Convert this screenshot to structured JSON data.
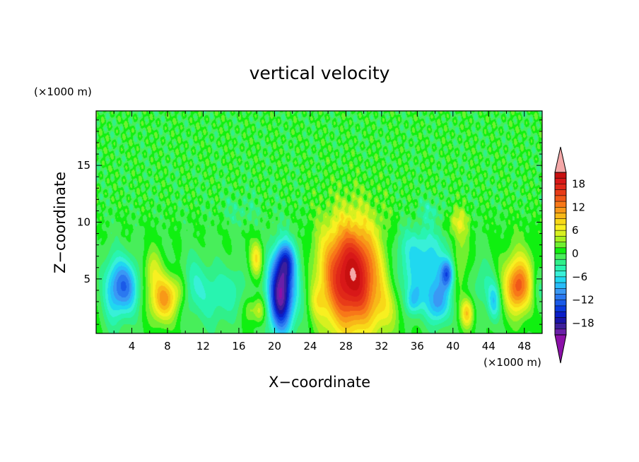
{
  "chart_data": {
    "type": "heatmap",
    "title": "vertical velocity",
    "xlabel": "X−coordinate",
    "ylabel": "Z−coordinate",
    "x_unit": "(×1000 m)",
    "y_unit": "(×1000 m)",
    "xlim": [
      0,
      50
    ],
    "ylim": [
      0.2,
      19.8
    ],
    "x_ticks": [
      4,
      8,
      12,
      16,
      20,
      24,
      28,
      32,
      36,
      40,
      44,
      48
    ],
    "y_ticks": [
      5,
      10,
      15
    ],
    "x_tick_labels": [
      "4",
      "8",
      "12",
      "16",
      "20",
      "24",
      "28",
      "32",
      "36",
      "40",
      "44",
      "48"
    ],
    "y_tick_labels": [
      "5",
      "10",
      "15"
    ],
    "colorbar": {
      "levels": [
        -21,
        -19.5,
        -18,
        -16.5,
        -15,
        -13.5,
        -12,
        -10.5,
        -9,
        -7.5,
        -6,
        -4.5,
        -3,
        -1.5,
        0,
        1.5,
        3,
        4.5,
        6,
        7.5,
        9,
        10.5,
        12,
        13.5,
        15,
        16.5,
        18,
        19.5,
        21
      ],
      "tick_values": [
        -18,
        -12,
        -6,
        0,
        6,
        12,
        18
      ],
      "tick_labels": [
        "−18",
        "−12",
        "−6",
        "0",
        "6",
        "12",
        "18"
      ],
      "colors": [
        "#6a1fa8",
        "#3d1f9c",
        "#1a14a8",
        "#0a1ec8",
        "#0a3ade",
        "#1a5ae8",
        "#2a78f0",
        "#3a98f4",
        "#28bcf8",
        "#20d8f0",
        "#38f0d8",
        "#28f4b0",
        "#30f08a",
        "#48ee5a",
        "#10f010",
        "#70f030",
        "#a8f020",
        "#d8f020",
        "#f8f020",
        "#f8d818",
        "#f8b818",
        "#f89818",
        "#f87818",
        "#f05818",
        "#e83c18",
        "#e02818",
        "#d81818",
        "#c81010"
      ],
      "under_color": "#8b10a8",
      "over_color": "#f4a8a8"
    },
    "features": [
      {
        "x": 3.2,
        "z": 4.3,
        "sx": 1.1,
        "sz": 1.7,
        "w": -11
      },
      {
        "x": 1.8,
        "z": 4.0,
        "sx": 0.8,
        "sz": 2.4,
        "w": -4
      },
      {
        "x": 7.5,
        "z": 3.2,
        "sx": 1.0,
        "sz": 1.4,
        "w": 11
      },
      {
        "x": 6.3,
        "z": 5.8,
        "sx": 0.7,
        "sz": 1.3,
        "w": 5
      },
      {
        "x": 9.3,
        "z": 4.0,
        "sx": 0.7,
        "sz": 1.1,
        "w": 4
      },
      {
        "x": 10.7,
        "z": 4.5,
        "sx": 1.0,
        "sz": 1.8,
        "w": -4
      },
      {
        "x": 13.2,
        "z": 3.5,
        "sx": 1.3,
        "sz": 2.0,
        "w": -4
      },
      {
        "x": 15.5,
        "z": 4.0,
        "sx": 0.8,
        "sz": 1.5,
        "w": -3
      },
      {
        "x": 18.0,
        "z": 6.8,
        "sx": 0.5,
        "sz": 1.1,
        "w": 8
      },
      {
        "x": 18.3,
        "z": 2.2,
        "sx": 0.5,
        "sz": 0.8,
        "w": 6
      },
      {
        "x": 17.2,
        "z": 2.3,
        "sx": 0.4,
        "sz": 0.7,
        "w": 3
      },
      {
        "x": 20.7,
        "z": 3.6,
        "sx": 0.9,
        "sz": 2.3,
        "w": -17
      },
      {
        "x": 21.3,
        "z": 6.6,
        "sx": 0.7,
        "sz": 1.1,
        "w": -8
      },
      {
        "x": 21.5,
        "z": 4.5,
        "sx": 1.8,
        "sz": 3.0,
        "w": -5
      },
      {
        "x": 28.6,
        "z": 5.3,
        "sx": 2.3,
        "sz": 3.3,
        "w": 17
      },
      {
        "x": 28.6,
        "z": 5.0,
        "sx": 3.2,
        "sz": 4.3,
        "w": 4
      },
      {
        "x": 24.8,
        "z": 3.0,
        "sx": 0.6,
        "sz": 1.0,
        "w": 3
      },
      {
        "x": 32.5,
        "z": 2.5,
        "sx": 1.2,
        "sz": 1.5,
        "w": 3
      },
      {
        "x": 36.5,
        "z": 5.5,
        "sx": 2.5,
        "sz": 2.0,
        "w": -7
      },
      {
        "x": 38.3,
        "z": 2.8,
        "sx": 0.9,
        "sz": 1.3,
        "w": -8
      },
      {
        "x": 39.4,
        "z": 5.5,
        "sx": 0.5,
        "sz": 0.9,
        "w": -10
      },
      {
        "x": 35.5,
        "z": 3.0,
        "sx": 0.6,
        "sz": 0.9,
        "w": -6
      },
      {
        "x": 36.0,
        "z": 8.2,
        "sx": 2.5,
        "sz": 1.2,
        "w": -3
      },
      {
        "x": 40.8,
        "z": 6.8,
        "sx": 0.7,
        "sz": 2.2,
        "w": 5
      },
      {
        "x": 41.6,
        "z": 2.0,
        "sx": 0.5,
        "sz": 0.9,
        "w": 9
      },
      {
        "x": 40.5,
        "z": 10.0,
        "sx": 0.8,
        "sz": 0.9,
        "w": 5
      },
      {
        "x": 43.4,
        "z": 4.5,
        "sx": 0.8,
        "sz": 1.5,
        "w": -3
      },
      {
        "x": 44.6,
        "z": 3.0,
        "sx": 0.5,
        "sz": 1.2,
        "w": -7
      },
      {
        "x": 47.3,
        "z": 4.3,
        "sx": 1.0,
        "sz": 1.6,
        "w": 12
      },
      {
        "x": 47.5,
        "z": 5.5,
        "sx": 1.5,
        "sz": 2.5,
        "w": 3
      },
      {
        "x": 49.5,
        "z": 4.0,
        "sx": 0.5,
        "sz": 1.4,
        "w": -3
      },
      {
        "x": 16.2,
        "z": 11.0,
        "sx": 1.5,
        "sz": 1.0,
        "w": -2
      },
      {
        "x": 37.5,
        "z": 11.0,
        "sx": 1.0,
        "sz": 0.8,
        "w": -3
      }
    ]
  }
}
